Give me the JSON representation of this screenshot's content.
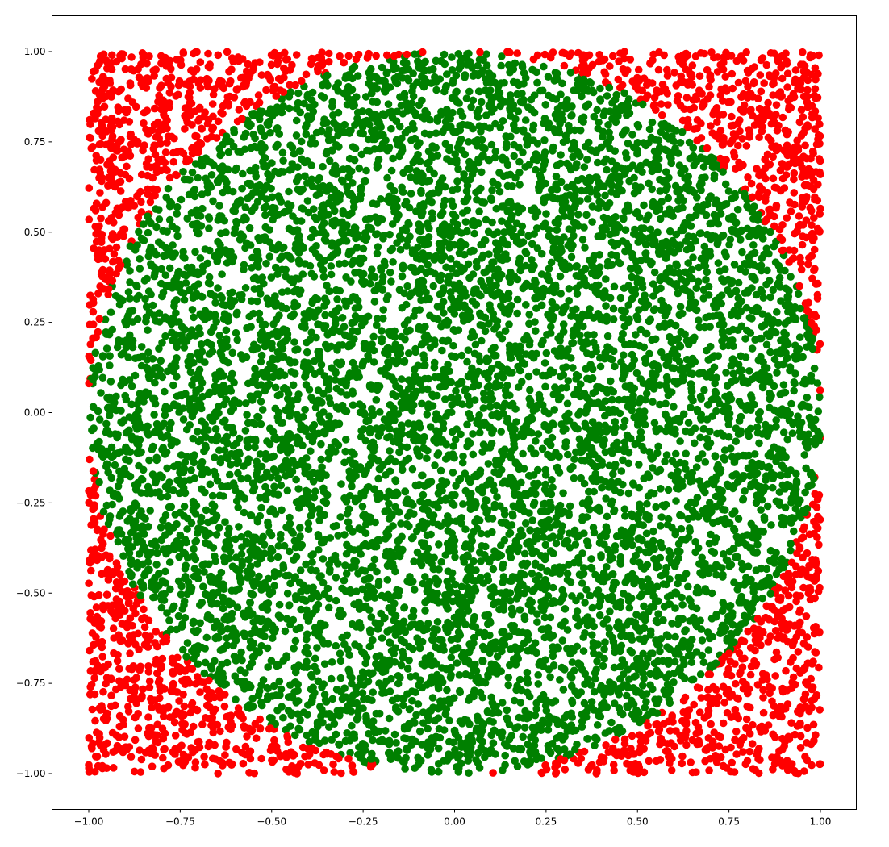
{
  "chart_data": {
    "type": "scatter",
    "title": "",
    "xlabel": "",
    "ylabel": "",
    "xlim": [
      -1.1,
      1.1
    ],
    "ylim": [
      -1.1,
      1.1
    ],
    "grid": false,
    "legend": "none",
    "xticks": [
      -1.0,
      -0.75,
      -0.5,
      -0.25,
      0.0,
      0.25,
      0.5,
      0.75,
      1.0
    ],
    "xtick_labels": [
      "−1.00",
      "−0.75",
      "−0.50",
      "−0.25",
      "0.00",
      "0.25",
      "0.50",
      "0.75",
      "1.00"
    ],
    "yticks": [
      -1.0,
      -0.75,
      -0.5,
      -0.25,
      0.0,
      0.25,
      0.5,
      0.75,
      1.0
    ],
    "ytick_labels": [
      "−1.00",
      "−0.75",
      "−0.50",
      "−0.25",
      "0.00",
      "0.25",
      "0.50",
      "0.75",
      "1.00"
    ],
    "series": [
      {
        "color": "#008000",
        "description": "points with x² + y² ≤ 1 (inside unit circle)",
        "approx_count": 7850
      },
      {
        "color": "#ff0000",
        "description": "points with x² + y² > 1 (outside unit circle)",
        "approx_count": 2150
      }
    ],
    "distribution": "uniform random over [-1, 1] × [-1, 1]",
    "total_points_approx": 10000
  }
}
